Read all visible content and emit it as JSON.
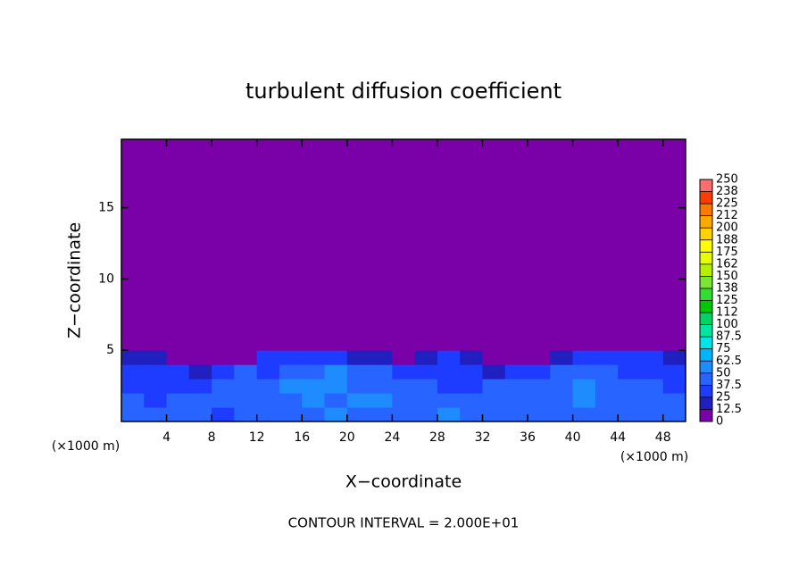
{
  "chart_data": {
    "type": "heatmap",
    "title": "turbulent diffusion coefficient",
    "x_label": "X−coordinate",
    "y_label": "Z−coordinate",
    "x_unit_label_left": "(×1000 m)",
    "x_unit_label_right": "(×1000 m)",
    "footer": "CONTOUR INTERVAL = 2.000E+01",
    "xlim": [
      0,
      50
    ],
    "ylim": [
      0,
      19.8
    ],
    "xticks": [
      4,
      8,
      12,
      16,
      20,
      24,
      28,
      32,
      36,
      40,
      44,
      48
    ],
    "yticks": [
      5,
      10,
      15
    ],
    "x": [
      1,
      3,
      5,
      7,
      9,
      11,
      13,
      15,
      17,
      19,
      21,
      23,
      25,
      27,
      29,
      31,
      33,
      35,
      37,
      39,
      41,
      43,
      45,
      47,
      49
    ],
    "y": [
      0.5,
      1.5,
      2.5,
      3.5,
      4.5,
      5.5
    ],
    "z": [
      [
        40,
        38,
        45,
        42,
        35,
        38,
        40,
        45,
        42,
        50,
        48,
        45,
        40,
        45,
        50,
        42,
        45,
        40,
        38,
        42,
        45,
        40,
        42,
        45,
        40
      ],
      [
        38,
        35,
        40,
        45,
        40,
        42,
        38,
        45,
        55,
        48,
        50,
        55,
        45,
        42,
        40,
        38,
        42,
        45,
        40,
        48,
        50,
        45,
        40,
        42,
        38
      ],
      [
        35,
        32,
        30,
        35,
        38,
        40,
        42,
        55,
        50,
        60,
        48,
        45,
        40,
        38,
        35,
        35,
        40,
        42,
        45,
        40,
        55,
        45,
        38,
        40,
        35
      ],
      [
        30,
        28,
        25,
        20,
        30,
        38,
        35,
        40,
        45,
        50,
        40,
        42,
        35,
        30,
        32,
        25,
        15,
        30,
        35,
        38,
        45,
        40,
        35,
        30,
        30
      ],
      [
        20,
        15,
        5,
        0,
        0,
        10,
        25,
        30,
        25,
        30,
        20,
        15,
        10,
        20,
        25,
        15,
        0,
        0,
        10,
        20,
        25,
        30,
        28,
        25,
        20
      ],
      [
        0,
        0,
        0,
        0,
        0,
        0,
        0,
        0,
        0,
        0,
        0,
        0,
        0,
        0,
        0,
        0,
        0,
        0,
        0,
        0,
        0,
        10,
        5,
        0,
        0
      ]
    ],
    "colorbar": {
      "ticks": [
        0,
        {
          "value": 12.5,
          "label": "12.5"
        },
        25,
        {
          "value": 37.5,
          "label": "37.5"
        },
        50,
        {
          "value": 62.5,
          "label": "62.5"
        },
        75,
        {
          "value": 87.5,
          "label": "87.5"
        },
        100,
        {
          "value": 112.5,
          "label": "112"
        },
        125,
        {
          "value": 137.5,
          "label": "138"
        },
        150,
        {
          "value": 162.5,
          "label": "162"
        },
        175,
        {
          "value": 187.5,
          "label": "188"
        },
        200,
        {
          "value": 212.5,
          "label": "212"
        },
        225,
        {
          "value": 237.5,
          "label": "238"
        },
        250
      ],
      "colors": [
        "#7a00a8",
        "#2020c0",
        "#1e3cff",
        "#2864ff",
        "#1e8cff",
        "#00b4ff",
        "#00e6e6",
        "#00e6a0",
        "#00d264",
        "#00c800",
        "#32dc32",
        "#78e632",
        "#b4f000",
        "#e6ff00",
        "#ffff00",
        "#ffd200",
        "#ffaa00",
        "#ff7800",
        "#ff3c00",
        "#ff6e6e"
      ]
    }
  }
}
